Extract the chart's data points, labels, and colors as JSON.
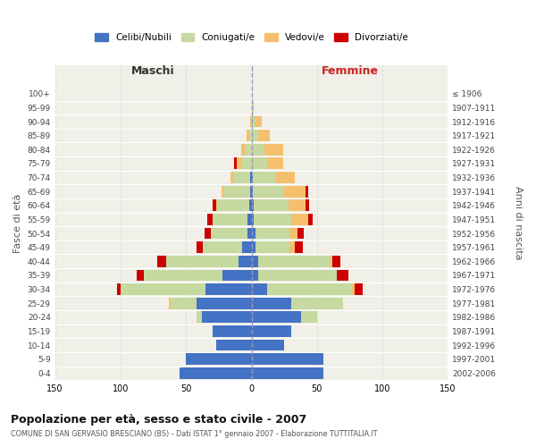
{
  "age_groups": [
    "0-4",
    "5-9",
    "10-14",
    "15-19",
    "20-24",
    "25-29",
    "30-34",
    "35-39",
    "40-44",
    "45-49",
    "50-54",
    "55-59",
    "60-64",
    "65-69",
    "70-74",
    "75-79",
    "80-84",
    "85-89",
    "90-94",
    "95-99",
    "100+"
  ],
  "birth_years": [
    "2002-2006",
    "1997-2001",
    "1992-1996",
    "1987-1991",
    "1982-1986",
    "1977-1981",
    "1972-1976",
    "1967-1971",
    "1962-1966",
    "1957-1961",
    "1952-1956",
    "1947-1951",
    "1942-1946",
    "1937-1941",
    "1932-1936",
    "1927-1931",
    "1922-1926",
    "1917-1921",
    "1912-1916",
    "1907-1911",
    "≤ 1906"
  ],
  "males_celibi": [
    55,
    50,
    27,
    30,
    38,
    42,
    35,
    22,
    10,
    7,
    3,
    3,
    2,
    1,
    1,
    0,
    0,
    0,
    0,
    0,
    0
  ],
  "males_coniugati": [
    0,
    0,
    0,
    0,
    4,
    20,
    65,
    60,
    55,
    30,
    28,
    27,
    24,
    20,
    12,
    7,
    5,
    2,
    0,
    0,
    0
  ],
  "males_vedovi": [
    0,
    0,
    0,
    0,
    0,
    1,
    0,
    0,
    0,
    0,
    0,
    0,
    1,
    2,
    3,
    4,
    3,
    2,
    1,
    0,
    0
  ],
  "males_divorziati": [
    0,
    0,
    0,
    0,
    0,
    0,
    3,
    6,
    7,
    5,
    5,
    4,
    3,
    0,
    0,
    2,
    0,
    0,
    0,
    0,
    0
  ],
  "females_nubili": [
    55,
    55,
    25,
    30,
    38,
    30,
    12,
    5,
    5,
    3,
    3,
    2,
    2,
    1,
    1,
    0,
    0,
    0,
    0,
    0,
    0
  ],
  "females_coniugate": [
    0,
    0,
    0,
    0,
    12,
    40,
    65,
    60,
    55,
    26,
    26,
    28,
    26,
    24,
    18,
    12,
    10,
    5,
    3,
    1,
    0
  ],
  "females_vedove": [
    0,
    0,
    0,
    0,
    0,
    0,
    2,
    0,
    2,
    4,
    6,
    13,
    13,
    16,
    14,
    12,
    14,
    9,
    5,
    1,
    0
  ],
  "females_divorziate": [
    0,
    0,
    0,
    0,
    0,
    0,
    6,
    9,
    6,
    6,
    5,
    4,
    3,
    2,
    0,
    0,
    0,
    0,
    0,
    0,
    0
  ],
  "color_celibi": "#4472c4",
  "color_coniugati": "#c5d9a0",
  "color_vedovi": "#f5c06e",
  "color_divorziati": "#cc0000",
  "bg_plot": "#f0f0e8",
  "bg_fig": "#ffffff",
  "grid_color": "#d8d8d8",
  "xlim": 150,
  "title": "Popolazione per età, sesso e stato civile - 2007",
  "subtitle": "COMUNE DI SAN GERVASIO BRESCIANO (BS) - Dati ISTAT 1° gennaio 2007 - Elaborazione TUTTITALIA.IT",
  "ylabel": "Fasce di età",
  "ylabel_right": "Anni di nascita",
  "xlabel_left": "Maschi",
  "xlabel_right": "Femmine"
}
